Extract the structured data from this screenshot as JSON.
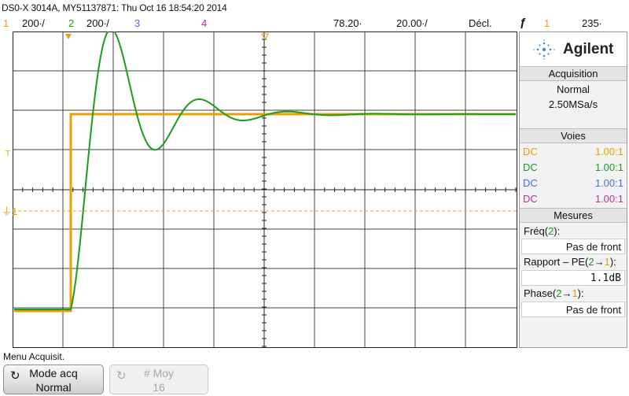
{
  "header": {
    "title": "DS0-X 3014A, MY51137871: Thu Oct 16 18:54:20 2014",
    "ch1_num": "1",
    "ch1_scale": "200∙/",
    "ch2_num": "2",
    "ch2_scale": "200∙/",
    "ch3_num": "3",
    "ch4_num": "4",
    "time_delay": "78.20∙",
    "time_scale": "20.00∙/",
    "trigger_mode": "Décl.",
    "trigger_edge_icon": "rising-edge-icon",
    "trigger_edge_glyph": "ƒ",
    "trigger_source": "1",
    "trigger_level": "235∙"
  },
  "markers": {
    "trigger_level_glyph": "T",
    "ch1_ground_label": "1"
  },
  "colors": {
    "ch1": "#e8a000",
    "ch2": "#1c9c1c",
    "ch3": "#4a6ee0",
    "ch4": "#c0309a"
  },
  "panel": {
    "brand": "Agilent",
    "acquisition": {
      "header": "Acquisition",
      "mode": "Normal",
      "rate": "2.50MSa/s"
    },
    "voies": {
      "header": "Voies",
      "channels": [
        {
          "coupling": "DC",
          "ratio": "1.00:1"
        },
        {
          "coupling": "DC",
          "ratio": "1.00:1"
        },
        {
          "coupling": "DC",
          "ratio": "1.00:1"
        },
        {
          "coupling": "DC",
          "ratio": "1.00:1"
        }
      ]
    },
    "mesures": {
      "header": "Mesures",
      "freq_label_pre": "Fréq(",
      "freq_label_ch": "2",
      "freq_label_post": "):",
      "freq_value": "Pas de front",
      "ratio_label_pre": "Rapport – PE(",
      "ratio_label_ch2": "2",
      "ratio_label_arrow": "→",
      "ratio_label_ch1": "1",
      "ratio_label_post": "):",
      "ratio_value": "1.1dB",
      "phase_label_pre": "Phase(",
      "phase_label_ch2": "2",
      "phase_label_arrow": "→",
      "phase_label_ch1": "1",
      "phase_label_post": "):",
      "phase_value": "Pas de front"
    }
  },
  "menu": {
    "title": "Menu Acquisit.",
    "softkeys": [
      {
        "line1": "Mode acq",
        "line2": "Normal",
        "enabled": true
      },
      {
        "line1": "# Moy",
        "line2": "16",
        "enabled": false
      }
    ]
  }
}
